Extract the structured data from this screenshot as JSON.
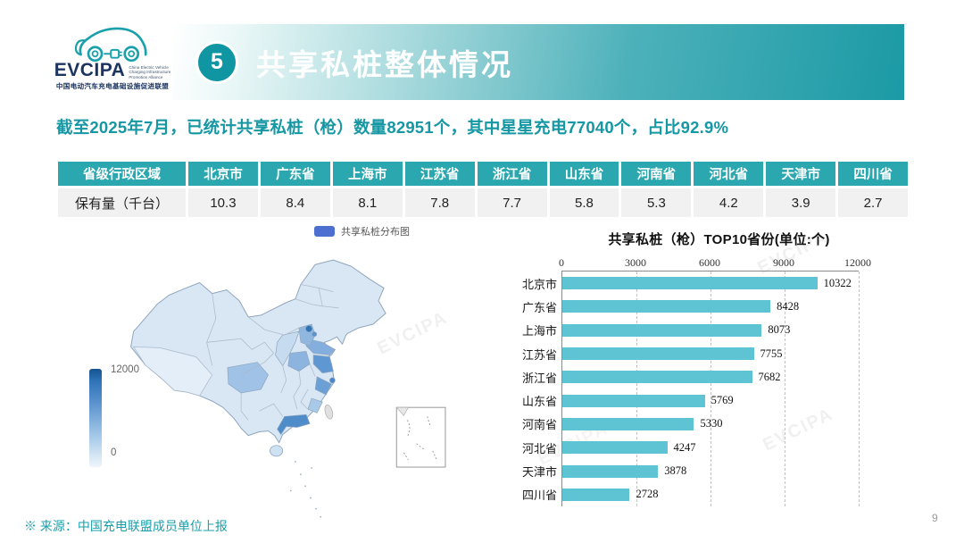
{
  "logo": {
    "acronym": "EVCIPA",
    "tagline_lines": [
      "China Electric Vehicle",
      "Charging Infrastructure",
      "Promotion Alliance"
    ],
    "org_cn": "中国电动汽车充电基础设施促进联盟"
  },
  "header": {
    "badge": "5",
    "title": "共享私桩整体情况"
  },
  "statement": "截至2025年7月，已统计共享私桩（枪）数量82951个，其中星星充电77040个，占比92.9%",
  "table": {
    "header_first": "省级行政区域",
    "row_label": "保有量（千台）",
    "provinces": [
      "北京市",
      "广东省",
      "上海市",
      "江苏省",
      "浙江省",
      "山东省",
      "河南省",
      "河北省",
      "天津市",
      "四川省"
    ],
    "values": [
      "10.3",
      "8.4",
      "8.1",
      "7.8",
      "7.7",
      "5.8",
      "5.3",
      "4.2",
      "3.9",
      "2.7"
    ]
  },
  "map": {
    "legend_label": "共享私桩分布图",
    "legend_color": "#4d6fd0",
    "scale_max": "12000",
    "scale_min": "0"
  },
  "chart_data": [
    {
      "type": "heatmap",
      "subtype": "choropleth-map",
      "title": "共享私桩分布图",
      "region": "China provinces",
      "scale_range": [
        0,
        12000
      ],
      "categories": [
        "北京市",
        "广东省",
        "上海市",
        "江苏省",
        "浙江省",
        "山东省",
        "河南省",
        "河北省",
        "天津市",
        "四川省"
      ],
      "values": [
        10322,
        8428,
        8073,
        7755,
        7682,
        5769,
        5330,
        4247,
        3878,
        2728
      ]
    },
    {
      "type": "bar",
      "orientation": "horizontal",
      "title": "共享私桩（枪）TOP10省份(单位:个)",
      "categories": [
        "北京市",
        "广东省",
        "上海市",
        "江苏省",
        "浙江省",
        "山东省",
        "河南省",
        "河北省",
        "天津市",
        "四川省"
      ],
      "values": [
        10322,
        8428,
        8073,
        7755,
        7682,
        5769,
        5330,
        4247,
        3878,
        2728
      ],
      "xlim": [
        0,
        12000
      ],
      "xticks": [
        0,
        3000,
        6000,
        9000,
        12000
      ],
      "grid": "dashed-vertical",
      "bar_color": "#5ec3d3",
      "value_labels": true,
      "legend": "none"
    }
  ],
  "footer": {
    "source": "※ 来源：中国充电联盟成员单位上报",
    "page": "9"
  },
  "watermark": "EVCIPA",
  "colors": {
    "accent_teal": "#1b9aa5",
    "statement_teal": "#1697a4",
    "table_header_teal": "#2ba7b0",
    "bar_teal": "#5ec3d3",
    "map_legend_blue": "#4d6fd0",
    "map_dark_blue": "#2f74b5",
    "map_light_blue": "#d9e7f5"
  }
}
